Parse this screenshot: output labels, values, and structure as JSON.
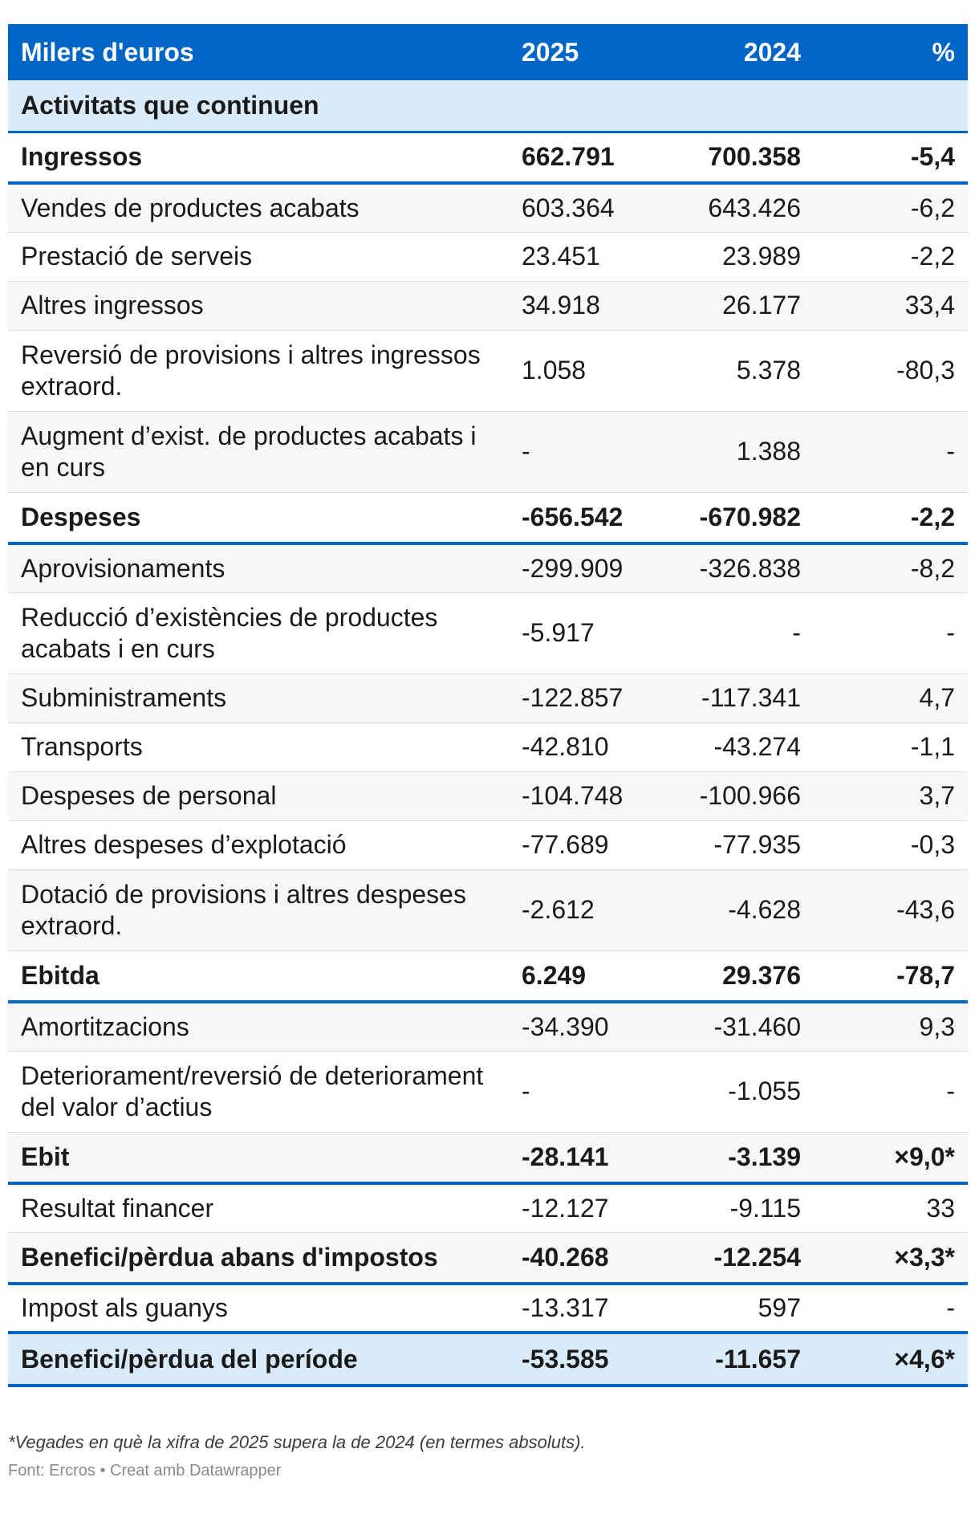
{
  "header": {
    "label": "Milers d'euros",
    "col_2025": "2025",
    "col_2024": "2024",
    "col_pct": "%"
  },
  "section_title": "Activitats que continuen",
  "rows": [
    {
      "label": "Ingressos",
      "v2025": "662.791",
      "v2024": "700.358",
      "pct": "-5,4",
      "style": "bold"
    },
    {
      "label": "Vendes de productes acabats",
      "v2025": "603.364",
      "v2024": "643.426",
      "pct": "-6,2",
      "style": "normal"
    },
    {
      "label": "Prestació de serveis",
      "v2025": "23.451",
      "v2024": "23.989",
      "pct": "-2,2",
      "style": "normal"
    },
    {
      "label": "Altres ingressos",
      "v2025": "34.918",
      "v2024": "26.177",
      "pct": "33,4",
      "style": "normal"
    },
    {
      "label": "Reversió de provisions i altres ingressos extraord.",
      "v2025": "1.058",
      "v2024": "5.378",
      "pct": "-80,3",
      "style": "tall"
    },
    {
      "label": "Augment d’exist. de productes acabats i en curs",
      "v2025": "-",
      "v2024": "1.388",
      "pct": "-",
      "style": "tall"
    },
    {
      "label": "Despeses",
      "v2025": "-656.542",
      "v2024": "-670.982",
      "pct": "-2,2",
      "style": "bold"
    },
    {
      "label": "Aprovisionaments",
      "v2025": "-299.909",
      "v2024": "-326.838",
      "pct": "-8,2",
      "style": "normal"
    },
    {
      "label": "Reducció d’existències de productes acabats i en curs",
      "v2025": "-5.917",
      "v2024": "-",
      "pct": "-",
      "style": "tall"
    },
    {
      "label": "Subministraments",
      "v2025": "-122.857",
      "v2024": "-117.341",
      "pct": "4,7",
      "style": "normal"
    },
    {
      "label": "Transports",
      "v2025": "-42.810",
      "v2024": "-43.274",
      "pct": "-1,1",
      "style": "normal"
    },
    {
      "label": "Despeses de personal",
      "v2025": "-104.748",
      "v2024": "-100.966",
      "pct": "3,7",
      "style": "normal"
    },
    {
      "label": "Altres despeses d’explotació",
      "v2025": "-77.689",
      "v2024": "-77.935",
      "pct": "-0,3",
      "style": "normal"
    },
    {
      "label": "Dotació de provisions i altres despeses extraord.",
      "v2025": "-2.612",
      "v2024": "-4.628",
      "pct": "-43,6",
      "style": "tall"
    },
    {
      "label": "Ebitda",
      "v2025": "6.249",
      "v2024": "29.376",
      "pct": "-78,7",
      "style": "bold"
    },
    {
      "label": "Amortitzacions",
      "v2025": "-34.390",
      "v2024": "-31.460",
      "pct": "9,3",
      "style": "normal"
    },
    {
      "label": "Deteriorament/reversió de deteriorament del valor d’actius",
      "v2025": "-",
      "v2024": "-1.055",
      "pct": "-",
      "style": "tall"
    },
    {
      "label": "Ebit",
      "v2025": "-28.141",
      "v2024": "-3.139",
      "pct": "×9,0*",
      "style": "bold"
    },
    {
      "label": "Resultat financer",
      "v2025": "-12.127",
      "v2024": "-9.115",
      "pct": "33",
      "style": "normal"
    },
    {
      "label": "Benefici/pèrdua abans d'impostos",
      "v2025": "-40.268",
      "v2024": "-12.254",
      "pct": "×3,3*",
      "style": "bold"
    },
    {
      "label": "Impost als guanys",
      "v2025": "-13.317",
      "v2024": "597",
      "pct": "-",
      "style": "normal"
    },
    {
      "label": "Benefici/pèrdua del període",
      "v2025": "-53.585",
      "v2024": "-11.657",
      "pct": "×4,6*",
      "style": "final"
    }
  ],
  "footnote": "*Vegades en què la xifra de 2025 supera la de 2024 (en termes absoluts).",
  "source": "Font: Ercros • Creat amb Datawrapper",
  "colors": {
    "header_bg": "#0066c6",
    "section_bg": "#d9ebf8",
    "rule": "#0066c6"
  }
}
